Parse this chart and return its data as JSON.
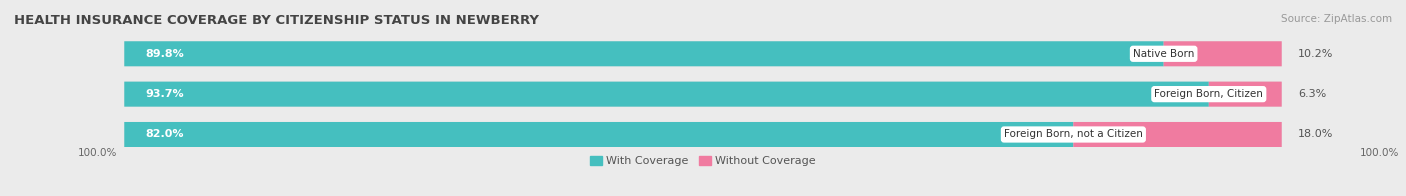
{
  "title": "HEALTH INSURANCE COVERAGE BY CITIZENSHIP STATUS IN NEWBERRY",
  "source": "Source: ZipAtlas.com",
  "categories": [
    "Native Born",
    "Foreign Born, Citizen",
    "Foreign Born, not a Citizen"
  ],
  "with_coverage": [
    89.8,
    93.7,
    82.0
  ],
  "without_coverage": [
    10.2,
    6.3,
    18.0
  ],
  "color_with": "#45BFBF",
  "color_without": "#F07BA0",
  "bg_color": "#ebebeb",
  "bar_bg_color": "#e0e0e0",
  "legend_with": "With Coverage",
  "legend_without": "Without Coverage",
  "left_label": "100.0%",
  "right_label": "100.0%",
  "title_fontsize": 9.5,
  "label_fontsize": 8,
  "source_fontsize": 7.5,
  "tick_fontsize": 7.5,
  "bar_height": 0.62,
  "bar_gap": 0.18,
  "x_min": 0.0,
  "x_max": 100.0
}
